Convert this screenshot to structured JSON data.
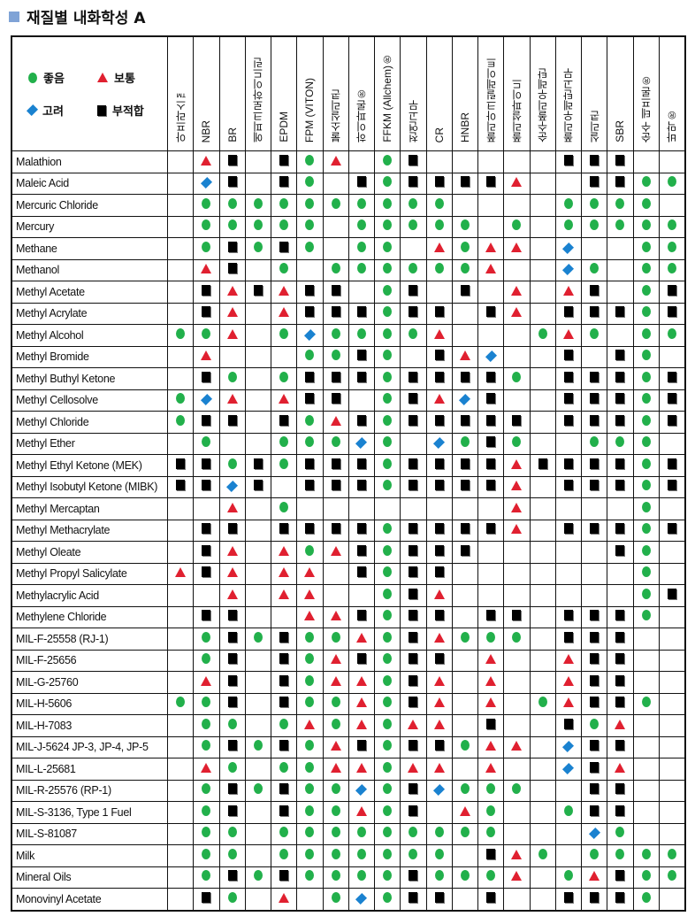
{
  "title": "재질별 내화학성 A",
  "colors": {
    "good": "#22b04b",
    "moderate": "#e02030",
    "consider": "#1a82d0",
    "unsuitable": "#000000",
    "title_marker": "#7fa3d6"
  },
  "legend": [
    {
      "code": "G",
      "icon": "circle-icon",
      "label": "좋음"
    },
    {
      "code": "A",
      "icon": "triangle-icon",
      "label": "보통"
    },
    {
      "code": "D",
      "icon": "diamond-icon",
      "label": "고려"
    },
    {
      "code": "X",
      "icon": "square-icon",
      "label": "부적합"
    }
  ],
  "columns": [
    "아프라스™",
    "NBR",
    "BR",
    "에피크로하이드린",
    "EPDM",
    "FPM (VITON)",
    "불소실리콘",
    "하이파론®",
    "FFKM (Allchem)®",
    "천연고무",
    "CR",
    "HNBR",
    "폴리아크릴레이트",
    "폴리설파이드",
    "순수폴리우레탄",
    "폴리우레탄고무",
    "실리콘",
    "SBR",
    "순수 테프론®",
    "바막®"
  ],
  "rows": [
    {
      "name": "Malathion",
      "ratings": "-AX-XGA-GX-----XXX--"
    },
    {
      "name": "Maleic Acid",
      "ratings": "-DX-XG-XGXXXXA--XXGG"
    },
    {
      "name": "Mercuric Chloride",
      "ratings": "-GGGGGGGGGG----GGGG-"
    },
    {
      "name": "Mercury",
      "ratings": "-GGGGG-GGGGG-G-GGGGG"
    },
    {
      "name": "Methane",
      "ratings": "-GXGXG-GG-AGAA-D--GG"
    },
    {
      "name": "Methanol",
      "ratings": "-AX-G-GGGGGGA--DG-GG"
    },
    {
      "name": "Methyl Acetate",
      "ratings": "-XAXAXX-GX-X-A-AX-GX"
    },
    {
      "name": "Methyl Acrylate",
      "ratings": "-XA-AXXXGXX-XA-XXXGX"
    },
    {
      "name": "Methyl Alcohol",
      "ratings": "GGA-GDGGGGA---GAG-GG"
    },
    {
      "name": "Methyl Bromide",
      "ratings": "-A---GGXG-XAD--X-XG-"
    },
    {
      "name": "Methyl Buthyl Ketone",
      "ratings": "-XG-GXXXGXXXXG-XXXGX"
    },
    {
      "name": "Methyl Cellosolve",
      "ratings": "GDA-AXX-GXADX--XXXGX"
    },
    {
      "name": "Methyl Chloride",
      "ratings": "GXX-XGAXGXXXXX-XXXGX"
    },
    {
      "name": "Methyl Ether",
      "ratings": "-G--GGGDG-DGXG--GGG-"
    },
    {
      "name": "Methyl Ethyl  Ketone (MEK)",
      "ratings": "XXGXGXXXGXXXXAXXXXGX"
    },
    {
      "name": "Methyl Isobutyl Ketone (MIBK)",
      "ratings": "XXDX-XXXGXXXXA-XXXGX"
    },
    {
      "name": "Methyl Mercaptan",
      "ratings": "--A-G--------A----G-"
    },
    {
      "name": "Methyl Methacrylate",
      "ratings": "-XX-XXXXGXXXXA-XXXGX"
    },
    {
      "name": "Methyl Oleate",
      "ratings": "-XA-AGAXGXXX-----XG-"
    },
    {
      "name": "Methyl Propyl Salicylate",
      "ratings": "AXA-AA-XGXX-------G-"
    },
    {
      "name": "Methylacrylic Acid",
      "ratings": "--A-AA--GXA-------GX"
    },
    {
      "name": "Methylene Chloride",
      "ratings": "-XX--AAXGXX-XX-XXXG-"
    },
    {
      "name": "MIL-F-25558 (RJ-1)",
      "ratings": "-GXGXGGAGXAGGG-XXX--"
    },
    {
      "name": "MIL-F-25656",
      "ratings": "-GX-XGAXGXX-A--AXX--"
    },
    {
      "name": "MIL-G-25760",
      "ratings": "-AX-XGAAGXA-A--AXX--"
    },
    {
      "name": "MIL-H-5606",
      "ratings": "GGX-XGGAGXA-A-GAXXG-"
    },
    {
      "name": "MIL-H-7083",
      "ratings": "-GG-GAGAGAA-X--XGA--"
    },
    {
      "name": "MIL-J-5624 JP-3, JP-4, JP-5",
      "ratings": "-GXGXGAXGXXGAA-DXX--"
    },
    {
      "name": "MIL-L-25681",
      "ratings": "-AG-GGAAGAA-A--DXA--"
    },
    {
      "name": "MIL-R-25576 (RP-1)",
      "ratings": "-GXGXGGDGXDGGG--XX--"
    },
    {
      "name": "MIL-S-3136, Type 1 Fuel",
      "ratings": "-GX-XGGAGX-AG--GXX--"
    },
    {
      "name": "MIL-S-81087",
      "ratings": "-GG-GGGGGGGGG---DG--"
    },
    {
      "name": "Milk",
      "ratings": "-GG-GGGGGGG-XAG-GGGG"
    },
    {
      "name": "Mineral Oils",
      "ratings": "-GXGXGGGGXGGGA-GAXGG"
    },
    {
      "name": "Monovinyl Acetate",
      "ratings": "-XG-A-GDGXX-X--XXXG-"
    }
  ]
}
